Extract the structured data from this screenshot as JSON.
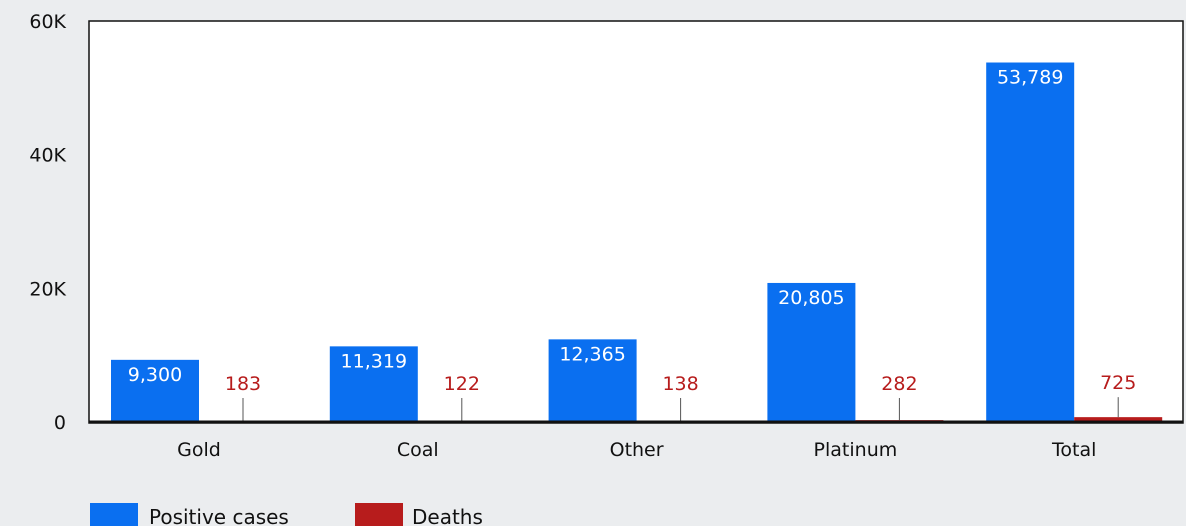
{
  "chart_data": {
    "type": "bar",
    "categories": [
      "Gold",
      "Coal",
      "Other",
      "Platinum",
      "Total"
    ],
    "series": [
      {
        "name": "Positive cases",
        "color": "#0a6ff0",
        "values": [
          9300,
          11319,
          12365,
          20805,
          53789
        ],
        "labels": [
          "9,300",
          "11,319",
          "12,365",
          "20,805",
          "53,789"
        ]
      },
      {
        "name": "Deaths",
        "color": "#b71c1c",
        "values": [
          183,
          122,
          138,
          282,
          725
        ],
        "labels": [
          "183",
          "122",
          "138",
          "282",
          "725"
        ]
      }
    ],
    "ylim": [
      0,
      60000
    ],
    "yticks": [
      0,
      20000,
      40000,
      60000
    ],
    "ytick_labels": [
      "0",
      "20K",
      "40K",
      "60K"
    ],
    "grid": false,
    "legend_position": "bottom-left"
  }
}
